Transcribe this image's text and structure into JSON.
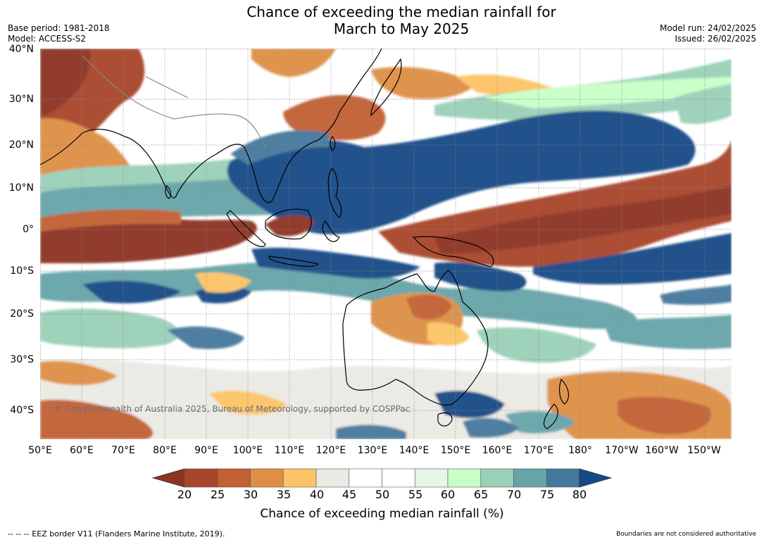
{
  "title": {
    "line1": "Chance of exceeding the median rainfall for",
    "line2": "March to May 2025"
  },
  "meta_left": {
    "base_period": "Base period: 1981-2018",
    "model": "Model: ACCESS-S2"
  },
  "meta_right": {
    "model_run": "Model run: 24/02/2025",
    "issued": "Issued: 26/02/2025"
  },
  "latitude_labels": [
    "40°N",
    "30°N",
    "20°N",
    "10°N",
    "0°",
    "10°S",
    "20°S",
    "30°S",
    "40°S"
  ],
  "longitude_labels": [
    "50°E",
    "60°E",
    "70°E",
    "80°E",
    "90°E",
    "100°E",
    "110°E",
    "120°E",
    "130°E",
    "140°E",
    "150°E",
    "160°E",
    "170°E",
    "180°",
    "170°W",
    "160°W",
    "150°W"
  ],
  "copyright": "© Commonwealth of Australia 2025, Bureau of Meteorology, supported by COSPPac",
  "colorbar": {
    "ticks": [
      "20",
      "25",
      "30",
      "35",
      "40",
      "45",
      "50",
      "55",
      "60",
      "65",
      "70",
      "75",
      "80"
    ],
    "colors": [
      "#8c3323",
      "#a8452b",
      "#c25f33",
      "#de8f45",
      "#fcc466",
      "#ebe9e3",
      "#ffffff",
      "#ffffff",
      "#e8f5e9",
      "#c8ffc8",
      "#99d0b8",
      "#66a4a8",
      "#44789c",
      "#154a85"
    ],
    "title": "Chance of exceeding median rainfall (%)"
  },
  "footer": {
    "eez_note": "--  --  -- EEZ border V11 (Flanders Marine Institute, 2019).",
    "disclaimer": "Boundaries are not considered authoritative"
  }
}
